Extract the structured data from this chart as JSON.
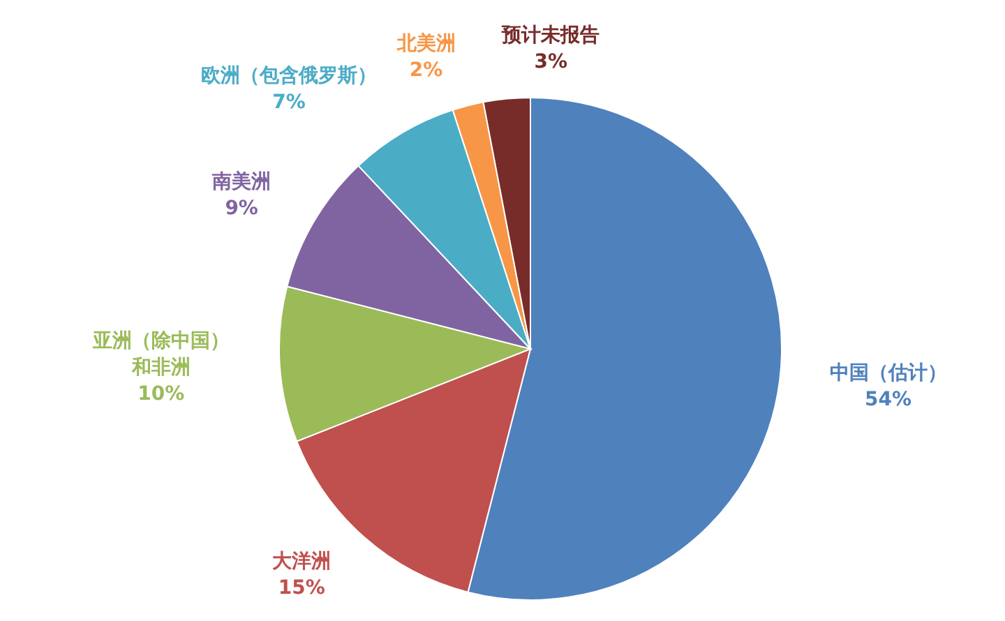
{
  "chart_data": {
    "type": "pie",
    "categories": [
      "中国（估计）",
      "大洋洲",
      "亚洲（除中国）和非洲",
      "南美洲",
      "欧洲（包含俄罗斯）",
      "北美洲",
      "预计未报告"
    ],
    "values": [
      54,
      15,
      10,
      9,
      7,
      2,
      3
    ],
    "colors": [
      "#4f81bd",
      "#c0504d",
      "#9bbb59",
      "#8064a2",
      "#4bacc6",
      "#f79646",
      "#772c2a"
    ],
    "value_labels": [
      "54%",
      "15%",
      "10%",
      "9%",
      "7%",
      "2%",
      "3%"
    ]
  }
}
